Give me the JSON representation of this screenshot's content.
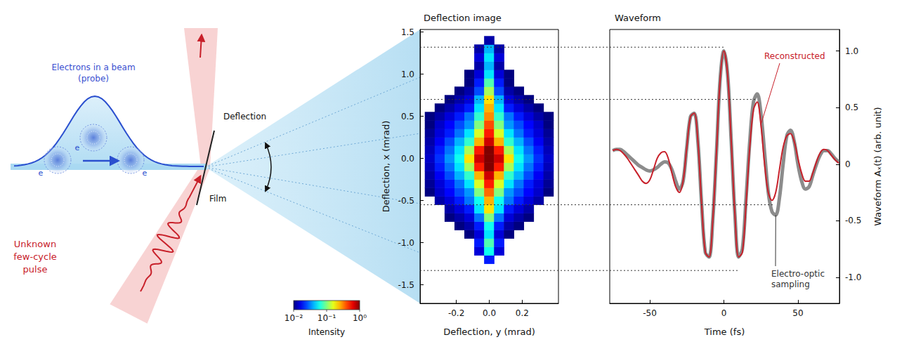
{
  "diagram": {
    "probe_label": [
      "Electrons in a beam",
      "(probe)"
    ],
    "electron_label": "e",
    "film_label": "Film",
    "deflection_label": "Deflection",
    "pulse_label": [
      "Unknown",
      "few-cycle",
      "pulse"
    ]
  },
  "chart_data": [
    {
      "type": "heatmap",
      "title": "Deflection image",
      "x_label": "Deflection, y (mrad)",
      "y_label": "Deflection, x (mrad)",
      "x": [
        -0.36,
        -0.3,
        -0.24,
        -0.18,
        -0.12,
        -0.06,
        0,
        0.06,
        0.12,
        0.18,
        0.24,
        0.3,
        0.36
      ],
      "y": [
        -1.4,
        -1.3,
        -1.2,
        -1.1,
        -1.0,
        -0.9,
        -0.8,
        -0.7,
        -0.6,
        -0.5,
        -0.4,
        -0.3,
        -0.2,
        -0.1,
        0,
        0.1,
        0.2,
        0.3,
        0.4,
        0.5,
        0.6,
        0.7,
        0.8,
        0.9,
        1.0,
        1.1,
        1.2,
        1.3,
        1.4
      ],
      "z": [
        [
          null,
          null,
          null,
          null,
          null,
          null,
          null,
          null,
          null,
          null,
          null,
          null,
          null
        ],
        [
          null,
          null,
          null,
          null,
          null,
          null,
          null,
          null,
          null,
          null,
          null,
          null,
          null
        ],
        [
          null,
          null,
          null,
          null,
          null,
          null,
          0.02,
          null,
          null,
          null,
          null,
          null,
          null
        ],
        [
          null,
          null,
          null,
          null,
          null,
          0.015,
          0.06,
          0.015,
          null,
          null,
          null,
          null,
          null
        ],
        [
          null,
          null,
          null,
          null,
          null,
          0.02,
          0.08,
          0.02,
          null,
          null,
          null,
          null,
          null
        ],
        [
          null,
          null,
          null,
          null,
          0.01,
          0.015,
          0.05,
          0.015,
          0.01,
          null,
          null,
          null,
          null
        ],
        [
          null,
          null,
          null,
          0.01,
          0.012,
          0.02,
          0.06,
          0.02,
          0.012,
          0.01,
          null,
          null,
          null
        ],
        [
          null,
          null,
          0.01,
          0.012,
          0.015,
          0.03,
          0.1,
          0.03,
          0.015,
          0.012,
          0.01,
          null,
          null
        ],
        [
          null,
          null,
          0.012,
          0.015,
          0.02,
          0.05,
          0.2,
          0.05,
          0.02,
          0.015,
          0.012,
          null,
          null
        ],
        [
          null,
          0.012,
          0.015,
          0.02,
          0.03,
          0.06,
          0.25,
          0.06,
          0.03,
          0.02,
          0.015,
          0.012,
          null
        ],
        [
          0.01,
          0.014,
          0.018,
          0.025,
          0.035,
          0.1,
          0.35,
          0.1,
          0.035,
          0.025,
          0.018,
          0.014,
          0.01
        ],
        [
          0.011,
          0.015,
          0.02,
          0.03,
          0.05,
          0.15,
          0.5,
          0.15,
          0.05,
          0.03,
          0.02,
          0.015,
          0.011
        ],
        [
          0.012,
          0.017,
          0.025,
          0.04,
          0.07,
          0.25,
          0.7,
          0.25,
          0.07,
          0.04,
          0.025,
          0.017,
          0.012
        ],
        [
          0.013,
          0.02,
          0.03,
          0.05,
          0.12,
          0.5,
          1,
          0.5,
          0.12,
          0.05,
          0.03,
          0.02,
          0.013
        ],
        [
          0.014,
          0.022,
          0.035,
          0.06,
          0.2,
          0.7,
          1,
          0.7,
          0.2,
          0.06,
          0.035,
          0.022,
          0.014
        ],
        [
          0.013,
          0.02,
          0.03,
          0.05,
          0.12,
          0.5,
          1,
          0.5,
          0.12,
          0.05,
          0.03,
          0.02,
          0.013
        ],
        [
          0.012,
          0.017,
          0.025,
          0.04,
          0.07,
          0.25,
          0.7,
          0.25,
          0.07,
          0.04,
          0.025,
          0.017,
          0.012
        ],
        [
          0.011,
          0.015,
          0.02,
          0.03,
          0.05,
          0.15,
          0.5,
          0.15,
          0.05,
          0.03,
          0.02,
          0.015,
          0.011
        ],
        [
          0.01,
          0.014,
          0.018,
          0.025,
          0.035,
          0.1,
          0.4,
          0.1,
          0.035,
          0.025,
          0.018,
          0.014,
          0.01
        ],
        [
          0.01,
          0.012,
          0.015,
          0.02,
          0.03,
          0.07,
          0.3,
          0.07,
          0.03,
          0.02,
          0.015,
          0.012,
          0.01
        ],
        [
          null,
          0.01,
          0.012,
          0.015,
          0.02,
          0.05,
          0.25,
          0.05,
          0.02,
          0.015,
          0.012,
          0.01,
          null
        ],
        [
          null,
          null,
          0.01,
          0.012,
          0.015,
          0.04,
          0.2,
          0.04,
          0.015,
          0.012,
          0.01,
          null,
          null
        ],
        [
          null,
          null,
          null,
          0.01,
          0.012,
          0.025,
          0.12,
          0.025,
          0.012,
          0.01,
          null,
          null,
          null
        ],
        [
          null,
          null,
          null,
          null,
          0.01,
          0.02,
          0.08,
          0.02,
          0.01,
          null,
          null,
          null,
          null
        ],
        [
          null,
          null,
          null,
          null,
          0.01,
          0.015,
          0.05,
          0.015,
          0.01,
          null,
          null,
          null,
          null
        ],
        [
          null,
          null,
          null,
          null,
          null,
          0.012,
          0.04,
          0.012,
          null,
          null,
          null,
          null,
          null
        ],
        [
          null,
          null,
          null,
          null,
          null,
          0.015,
          0.05,
          0.015,
          null,
          null,
          null,
          null,
          null
        ],
        [
          null,
          null,
          null,
          null,
          null,
          0.012,
          0.04,
          0.012,
          null,
          null,
          null,
          null,
          null
        ],
        [
          null,
          null,
          null,
          null,
          null,
          null,
          0.012,
          null,
          null,
          null,
          null,
          null,
          null
        ]
      ],
      "xlim": [
        -0.42,
        0.42
      ],
      "xticks": [
        -0.2,
        {
          "value": 0,
          "label": "0.0"
        },
        0.2
      ],
      "ylim": [
        -1.72,
        1.53
      ],
      "yticks": [
        -1.5,
        {
          "value": -1,
          "label": "-1.0"
        },
        -0.5,
        {
          "value": 0,
          "label": "0.0"
        },
        0.5,
        {
          "value": 1,
          "label": "1.0"
        },
        1.5
      ],
      "colorbar": {
        "label": "Intensity",
        "range": [
          0.01,
          1
        ],
        "ticks": [
          {
            "value": 0.01,
            "label": "10⁻²"
          },
          {
            "value": 0.1,
            "label": "10⁻¹"
          },
          {
            "value": 1,
            "label": "10⁰"
          }
        ],
        "log": true
      },
      "grid": false
    },
    {
      "type": "line",
      "title": "Waveform",
      "x_label": "Time (fs)",
      "y_label": "Waveform Aₓ(t) (arb. unit)",
      "x": [
        -75,
        -72.5,
        -70,
        -67.5,
        -65,
        -62.5,
        -60,
        -57.5,
        -55,
        -52.5,
        -50,
        -47.5,
        -45,
        -42.5,
        -40,
        -37.5,
        -35,
        -32.5,
        -30,
        -27.5,
        -25,
        -22.5,
        -20,
        -17.5,
        -15,
        -12.5,
        -10,
        -7.5,
        -5,
        -2.5,
        0,
        2.5,
        5,
        7.5,
        10,
        12.5,
        15,
        17.5,
        20,
        22.5,
        25,
        27.5,
        30,
        32.5,
        35,
        37.5,
        40,
        42.5,
        45,
        47.5,
        50,
        52.5,
        55,
        57.5,
        60,
        62.5,
        65,
        67.5,
        70,
        72.5,
        75,
        77.5
      ],
      "series": [
        {
          "name": "Electro-optic sampling",
          "color": "#8c8c8c",
          "line_style": "thick",
          "values": [
            0.12,
            0.13,
            0.13,
            0.11,
            0.08,
            0.05,
            0.02,
            -0.01,
            -0.03,
            -0.05,
            -0.06,
            -0.05,
            -0.03,
            0,
            0.02,
            0.01,
            -0.05,
            -0.15,
            -0.22,
            -0.15,
            0.15,
            0.42,
            0.45,
            0.2,
            -0.35,
            -0.78,
            -0.82,
            -0.5,
            0.1,
            0.75,
            1,
            0.8,
            0.2,
            -0.45,
            -0.82,
            -0.75,
            -0.3,
            0.2,
            0.55,
            0.62,
            0.45,
            0.1,
            -0.25,
            -0.42,
            -0.45,
            -0.3,
            0,
            0.25,
            0.3,
            0.2,
            0,
            -0.15,
            -0.22,
            -0.2,
            -0.1,
            0,
            0.08,
            0.12,
            0.12,
            0.09,
            0.05,
            0.02
          ]
        },
        {
          "name": "Reconstructed",
          "color": "#c8202a",
          "line_style": "thin",
          "values": [
            0.12,
            0.13,
            0.12,
            0.09,
            0.05,
            0,
            -0.05,
            -0.1,
            -0.15,
            -0.17,
            -0.14,
            -0.05,
            0.05,
            0.1,
            0.11,
            0.05,
            -0.08,
            -0.2,
            -0.25,
            -0.15,
            0.15,
            0.42,
            0.45,
            0.2,
            -0.35,
            -0.78,
            -0.82,
            -0.5,
            0.1,
            0.75,
            1,
            0.8,
            0.2,
            -0.45,
            -0.82,
            -0.78,
            -0.35,
            0.15,
            0.48,
            0.55,
            0.35,
            0,
            -0.25,
            -0.32,
            -0.25,
            -0.05,
            0.15,
            0.25,
            0.27,
            0.2,
            0.05,
            -0.08,
            -0.15,
            -0.15,
            -0.08,
            0.02,
            0.1,
            0.13,
            0.12,
            0.08,
            0.04,
            0.01
          ]
        }
      ],
      "xlim": [
        -77,
        78
      ],
      "xticks": [
        -50,
        0,
        50
      ],
      "ylim": [
        -1.23,
        1.19
      ],
      "yticks": [
        {
          "value": -1,
          "label": "-1.0"
        },
        -0.5,
        0,
        0.5,
        {
          "value": 1,
          "label": "1.0"
        }
      ],
      "grid": false
    }
  ],
  "guide_lines": [
    {
      "deflection_x": 1.32,
      "time": 0
    },
    {
      "deflection_x": 0.7,
      "time": 22
    },
    {
      "deflection_x": -0.55,
      "time": 34
    },
    {
      "deflection_x": -1.33,
      "time": 10
    }
  ]
}
